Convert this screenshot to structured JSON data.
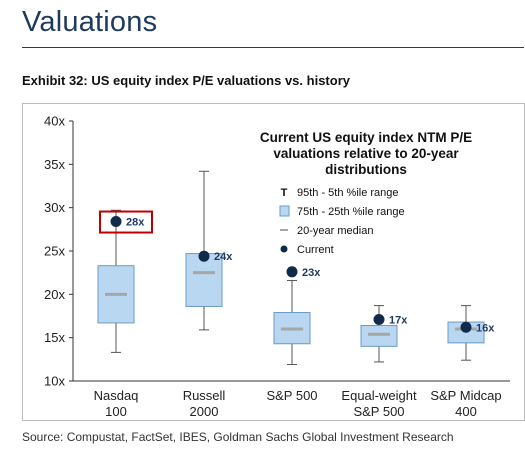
{
  "page": {
    "heading": "Valuations",
    "exhibit_title": "Exhibit 32: US equity index P/E valuations vs. history",
    "source": "Source: Compustat, FactSet, IBES, Goldman Sachs Global Investment Research"
  },
  "colors": {
    "heading": "#1f3a5f",
    "box_fill": "#b9d7f0",
    "box_stroke": "#6a9bc4",
    "median": "#a6a6a6",
    "current": "#0f2a4a",
    "highlight": "#c00000"
  },
  "chart_data": {
    "type": "box",
    "title": "Current US equity index NTM P/E valuations relative to 20-year distributions",
    "title_lines": [
      "Current US equity index NTM P/E",
      "valuations relative to 20-year",
      "distributions"
    ],
    "xlabel": "",
    "ylabel": "",
    "ylim": [
      10,
      40
    ],
    "yticks": [
      10,
      15,
      20,
      25,
      30,
      35,
      40
    ],
    "ytick_labels": [
      "10x",
      "15x",
      "20x",
      "25x",
      "30x",
      "35x",
      "40x"
    ],
    "categories": [
      {
        "line1": "Nasdaq",
        "line2": "100"
      },
      {
        "line1": "Russell",
        "line2": "2000"
      },
      {
        "line1": "S&P 500",
        "line2": ""
      },
      {
        "line1": "Equal-weight",
        "line2": "S&P 500"
      },
      {
        "line1": "S&P Midcap",
        "line2": "400"
      }
    ],
    "series": [
      {
        "p5": 13.3,
        "p25": 16.7,
        "median": 20.0,
        "p75": 23.3,
        "p95": 29.7,
        "current": 28.4,
        "current_label": "28x",
        "highlighted": true
      },
      {
        "p5": 15.9,
        "p25": 18.6,
        "median": 22.5,
        "p75": 24.7,
        "p95": 34.2,
        "current": 24.4,
        "current_label": "24x",
        "highlighted": false
      },
      {
        "p5": 11.9,
        "p25": 14.3,
        "median": 16.0,
        "p75": 17.9,
        "p95": 21.6,
        "current": 22.6,
        "current_label": "23x",
        "highlighted": false
      },
      {
        "p5": 12.2,
        "p25": 14.0,
        "median": 15.4,
        "p75": 16.4,
        "p95": 18.7,
        "current": 17.1,
        "current_label": "17x",
        "highlighted": false
      },
      {
        "p5": 12.4,
        "p25": 14.4,
        "median": 16.0,
        "p75": 16.8,
        "p95": 18.7,
        "current": 16.2,
        "current_label": "16x",
        "highlighted": false
      }
    ],
    "legend": {
      "placement": "top-right",
      "items": [
        {
          "key": "range",
          "symbol": "T",
          "label": "95th - 5th %ile range"
        },
        {
          "key": "box",
          "label": "75th - 25th %ile range"
        },
        {
          "key": "median",
          "label": "20-year median"
        },
        {
          "key": "current",
          "label": "Current"
        }
      ]
    },
    "grid": false
  }
}
